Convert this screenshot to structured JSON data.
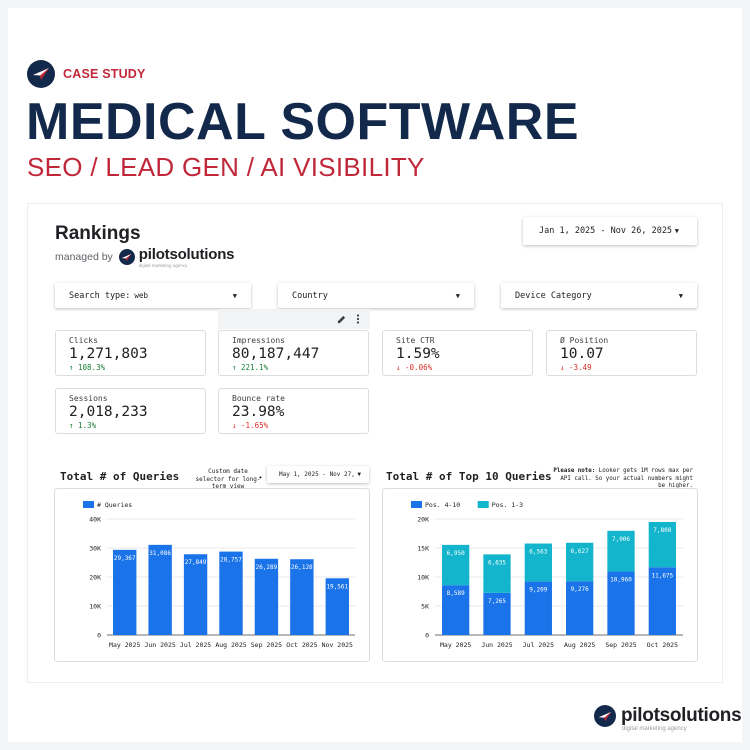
{
  "header": {
    "tag": "CASE STUDY",
    "title": "MEDICAL SOFTWARE",
    "subtitle": "SEO / LEAD GEN / AI VISIBILITY"
  },
  "dashboard": {
    "title": "Rankings",
    "managed_by": "managed by",
    "brand": "pilotsolutions",
    "brand_tagline": "digital marketing agency",
    "date_range": "Jan 1, 2025 - Nov 26, 2025",
    "filters": {
      "search_type_label": "Search type:",
      "search_type_value": "web",
      "country_label": "Country",
      "device_label": "Device Category"
    },
    "kpis": [
      {
        "label": "Clicks",
        "value": "1,271,803",
        "delta": "↑ 108.3%",
        "trend": "up"
      },
      {
        "label": "Impressions",
        "value": "80,187,447",
        "delta": "↑ 221.1%",
        "trend": "up"
      },
      {
        "label": "Site CTR",
        "value": "1.59%",
        "delta": "↓ -0.06%",
        "trend": "down"
      },
      {
        "label": "Ø Position",
        "value": "10.07",
        "delta": "↓ -3.49",
        "trend": "down"
      },
      {
        "label": "Sessions",
        "value": "2,018,233",
        "delta": "↑ 1.3%",
        "trend": "up"
      },
      {
        "label": "Bounce rate",
        "value": "23.98%",
        "delta": "↓ -1.65%",
        "trend": "down"
      }
    ],
    "queries_chart": {
      "title": "Total # of Queries",
      "note": "Custom date selector for long-term view",
      "date_range": "May 1, 2025 - Nov 27,"
    },
    "top10_chart": {
      "title": "Total # of Top 10 Queries",
      "note_bold": "Please note:",
      "note": " Looker gets 1M rows max per API call. So your actual numbers might be higher."
    }
  },
  "footer": {
    "brand": "pilotsolutions",
    "tagline": "digital marketing agency"
  },
  "colors": {
    "navy": "#13294b",
    "red": "#c0283a",
    "bar_blue": "#1a73e8",
    "bar_teal": "#12b5cb"
  },
  "chart_data": [
    {
      "type": "bar",
      "title": "Total # of Queries",
      "categories": [
        "May 2025",
        "Jun 2025",
        "Jul 2025",
        "Aug 2025",
        "Sep 2025",
        "Oct 2025",
        "Nov 2025"
      ],
      "series": [
        {
          "name": "# Queries",
          "values": [
            29367,
            31086,
            27849,
            28757,
            26289,
            26128,
            19561
          ],
          "labels": [
            "29,367",
            "31,086",
            "27,849",
            "28,757",
            "26,289",
            "26,128",
            "19,561"
          ],
          "color": "#1a73e8"
        }
      ],
      "yticks": [
        "0",
        "10K",
        "20K",
        "30K",
        "40K"
      ],
      "ylim": [
        0,
        40000
      ],
      "legend": "top-left",
      "grid": true
    },
    {
      "type": "bar",
      "stacked": true,
      "title": "Total # of Top 10 Queries",
      "categories": [
        "May 2025",
        "Jun 2025",
        "Jul 2025",
        "Aug 2025",
        "Sep 2025",
        "Oct 2025"
      ],
      "series": [
        {
          "name": "Pos. 4-10",
          "values": [
            8589,
            7265,
            9209,
            9276,
            10960,
            11675
          ],
          "labels": [
            "8,589",
            "7,265",
            "9,209",
            "9,276",
            "10,960",
            "11,675"
          ],
          "color": "#1a73e8"
        },
        {
          "name": "Pos. 1-3",
          "values": [
            6950,
            6635,
            6563,
            6627,
            7006,
            7808
          ],
          "labels": [
            "6,950",
            "6,635",
            "6,563",
            "6,627",
            "7,006",
            "7,808"
          ],
          "color": "#12b5cb"
        }
      ],
      "yticks": [
        "0",
        "5K",
        "10K",
        "15K",
        "20K"
      ],
      "ylim": [
        0,
        20000
      ],
      "legend": "top-left",
      "grid": true
    }
  ]
}
